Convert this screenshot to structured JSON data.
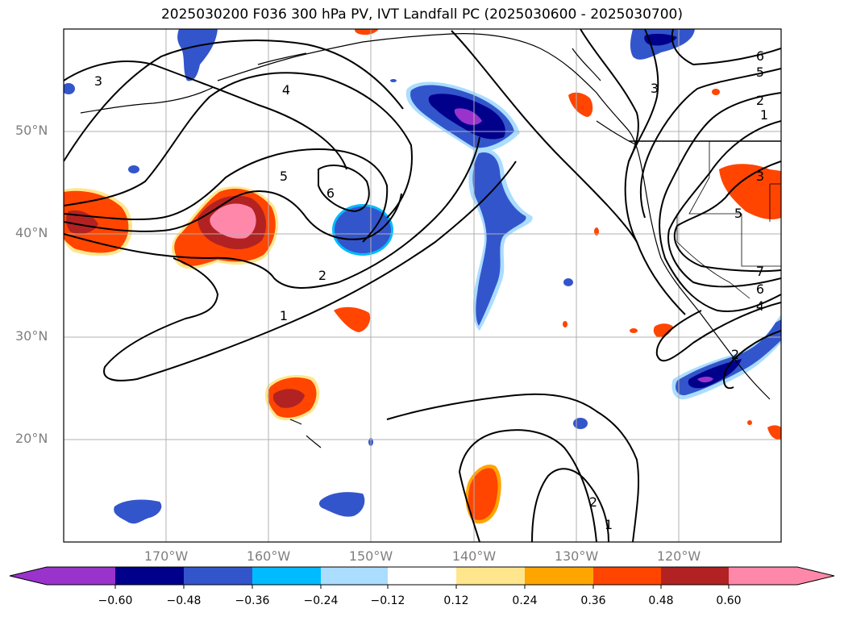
{
  "title": "2025030200 F036 300 hPa PV, IVT Landfall PC (2025030600 - 2025030700)",
  "lat_labels": [
    "50°N",
    "40°N",
    "30°N",
    "20°N"
  ],
  "lon_labels": [
    "170°W",
    "160°W",
    "150°W",
    "140°W",
    "130°W",
    "120°W"
  ],
  "colorbar": {
    "ticks": [
      "−0.60",
      "−0.48",
      "−0.36",
      "−0.24",
      "−0.12",
      "0.12",
      "0.24",
      "0.36",
      "0.48",
      "0.60"
    ],
    "colors": [
      "#9933cc",
      "#00008b",
      "#3355cc",
      "#00bbff",
      "#aaddff",
      "#ffffff",
      "#ffe68c",
      "#ffa500",
      "#ff4500",
      "#b22222",
      "#ff88aa"
    ],
    "extend": "both"
  },
  "contour_labels": [
    "3",
    "4",
    "5",
    "6",
    "2",
    "1",
    "3",
    "6",
    "5",
    "2",
    "1",
    "3",
    "5",
    "7",
    "6",
    "4",
    "2",
    "2",
    "1"
  ],
  "colors": {
    "pv_negative_strong": "#9933cc",
    "pv_positive_strong": "#ff88aa",
    "grid": "#b0b0b0",
    "contour": "#000000"
  }
}
